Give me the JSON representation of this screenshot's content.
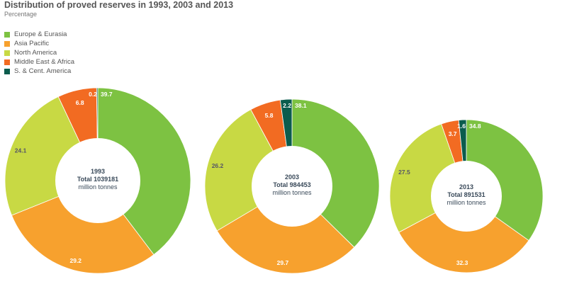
{
  "chart_data": {
    "type": "pie",
    "title": "Distribution of proved reserves in 1993, 2003 and 2013",
    "subtitle": "Percentage",
    "legend": [
      {
        "name": "Europe & Eurasia",
        "color": "#7dc242"
      },
      {
        "name": "Asia Pacific",
        "color": "#f7a12e"
      },
      {
        "name": "North America",
        "color": "#c8d944"
      },
      {
        "name": "Middle East & Africa",
        "color": "#f26b22"
      },
      {
        "name": "S. & Cent. America",
        "color": "#0b5c4d"
      }
    ],
    "charts": [
      {
        "year": "1993",
        "total": "Total 1039181",
        "unit": "million tonnes",
        "values": [
          39.7,
          29.2,
          24.1,
          6.8,
          0.2
        ],
        "labels": [
          "39.7",
          "29.2",
          "24.1",
          "6.8",
          "0.2"
        ]
      },
      {
        "year": "2003",
        "total": "Total 984453",
        "unit": "million tonnes",
        "values": [
          38.1,
          29.7,
          26.2,
          5.8,
          2.2
        ],
        "labels": [
          "38.1",
          "29.7",
          "26.2",
          "5.8",
          "2.2"
        ]
      },
      {
        "year": "2013",
        "total": "Total 891531",
        "unit": "million tonnes",
        "values": [
          34.8,
          32.3,
          27.5,
          3.7,
          1.6
        ],
        "labels": [
          "34.8",
          "32.3",
          "27.5",
          "3.7",
          "1.6"
        ]
      }
    ]
  }
}
